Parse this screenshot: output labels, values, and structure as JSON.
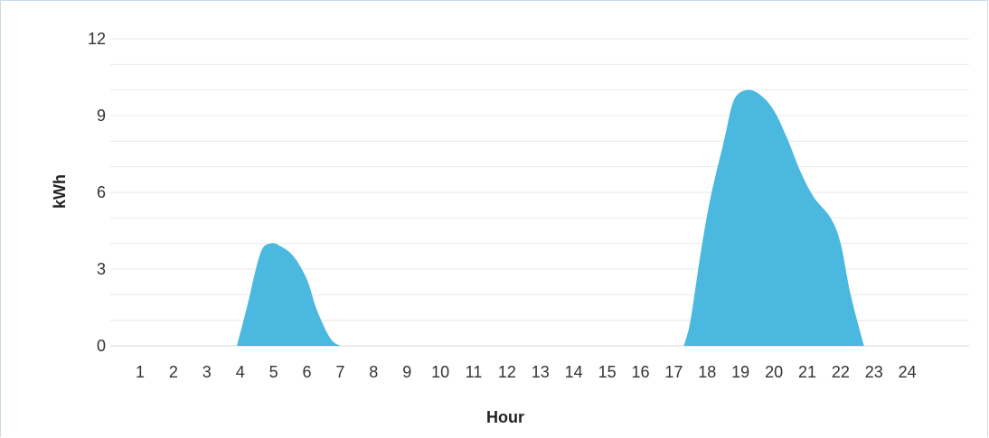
{
  "chart_data": {
    "type": "area",
    "xlabel": "Hour",
    "ylabel": "kWh",
    "ylim": [
      0,
      12
    ],
    "yticks": [
      "0",
      "3",
      "6",
      "9",
      "12"
    ],
    "xlim": [
      0,
      24
    ],
    "xticks": [
      "1",
      "2",
      "3",
      "4",
      "5",
      "6",
      "7",
      "8",
      "9",
      "10",
      "11",
      "12",
      "13",
      "14",
      "15",
      "16",
      "17",
      "18",
      "19",
      "20",
      "21",
      "22",
      "23",
      "24"
    ],
    "grid": true,
    "color": "#4bb8e0",
    "series": [
      {
        "x": [
          3.9,
          4.2,
          4.6,
          4.9,
          5.2,
          5.6,
          6.0,
          6.3,
          6.7,
          7.0
        ],
        "values": [
          0,
          1.5,
          3.6,
          4.0,
          3.9,
          3.5,
          2.6,
          1.4,
          0.3,
          0
        ]
      },
      {
        "x": [
          17.3,
          17.5,
          17.8,
          18.1,
          18.5,
          18.8,
          19.2,
          19.6,
          20.0,
          20.4,
          20.8,
          21.2,
          21.7,
          22.0,
          22.3,
          22.7
        ],
        "values": [
          0,
          1.0,
          3.6,
          5.8,
          8.0,
          9.6,
          10.0,
          9.8,
          9.2,
          8.1,
          6.8,
          5.8,
          5.0,
          4.0,
          2.0,
          0
        ]
      }
    ]
  }
}
